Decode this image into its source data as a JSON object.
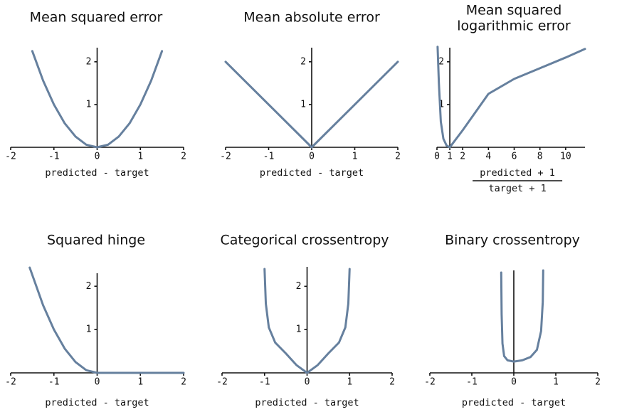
{
  "chart_data": [
    {
      "type": "line",
      "title": [
        "Mean squared error"
      ],
      "x_label": [
        "predicted - target"
      ],
      "color": "#66809e",
      "x": [
        -1.5,
        -1.25,
        -1,
        -0.75,
        -0.5,
        -0.25,
        0,
        0.25,
        0.5,
        0.75,
        1,
        1.25,
        1.5
      ],
      "values": [
        2.25,
        1.56,
        1,
        0.56,
        0.25,
        0.06,
        0,
        0.06,
        0.25,
        0.56,
        1,
        1.56,
        2.25
      ],
      "xlim": [
        -2,
        2
      ],
      "ylim": [
        0,
        2.33
      ],
      "xticks": [
        -2,
        -1,
        0,
        1,
        2
      ],
      "yticks": [
        1,
        2
      ],
      "y_axis_at": 0
    },
    {
      "type": "line",
      "title": [
        "Mean absolute error"
      ],
      "x_label": [
        "predicted - target"
      ],
      "color": "#66809e",
      "x": [
        -2,
        0,
        2
      ],
      "values": [
        2,
        0,
        2
      ],
      "xlim": [
        -2,
        2
      ],
      "ylim": [
        0,
        2.33
      ],
      "xticks": [
        -2,
        -1,
        0,
        1,
        2
      ],
      "yticks": [
        1,
        2
      ],
      "y_axis_at": 0
    },
    {
      "type": "line",
      "title": [
        "Mean squared",
        "logarithmic error"
      ],
      "x_label": [
        "predicted + 1",
        "target + 1"
      ],
      "color": "#66809e",
      "x": [
        0.05,
        0.15,
        0.3,
        0.5,
        0.75,
        1,
        2,
        4,
        6,
        8,
        10,
        11.5
      ],
      "values": [
        2.35,
        1.5,
        0.6,
        0.2,
        0.04,
        0,
        0.4,
        1.25,
        1.6,
        1.85,
        2.1,
        2.3
      ],
      "xlim": [
        0,
        11.5
      ],
      "ylim": [
        0,
        2.33
      ],
      "xticks": [
        0,
        1,
        2,
        4,
        6,
        8,
        10
      ],
      "yticks": [
        1,
        2
      ],
      "y_axis_at": 1
    },
    {
      "type": "line",
      "title": [
        "Squared hinge"
      ],
      "x_label": [
        "predicted - target"
      ],
      "color": "#66809e",
      "x": [
        -1.56,
        -1.25,
        -1,
        -0.75,
        -0.5,
        -0.25,
        0,
        1,
        2
      ],
      "values": [
        2.43,
        1.56,
        1,
        0.56,
        0.25,
        0.06,
        0,
        0,
        0
      ],
      "xlim": [
        -2,
        2
      ],
      "ylim": [
        0,
        2.3
      ],
      "xticks": [
        -2,
        -1,
        0,
        1,
        2
      ],
      "yticks": [
        1,
        2
      ],
      "y_axis_at": 0
    },
    {
      "type": "line",
      "title": [
        "Categorical crossentropy"
      ],
      "x_label": [
        "predicted - target"
      ],
      "color": "#66809e",
      "x": [
        -1,
        -0.97,
        -0.9,
        -0.75,
        -0.5,
        -0.25,
        0,
        0.25,
        0.5,
        0.75,
        0.9,
        0.97,
        1
      ],
      "values": [
        2.4,
        1.6,
        1.05,
        0.7,
        0.45,
        0.18,
        0,
        0.18,
        0.45,
        0.7,
        1.05,
        1.6,
        2.4
      ],
      "xlim": [
        -2,
        2
      ],
      "ylim": [
        0,
        2.45
      ],
      "xticks": [
        -2,
        -1,
        0,
        1,
        2
      ],
      "yticks": [
        1,
        2
      ],
      "y_axis_at": 0
    },
    {
      "type": "line",
      "title": [
        "Binary crossentropy"
      ],
      "x_label": [
        "predicted - target"
      ],
      "color": "#66809e",
      "x": [
        -0.3,
        -0.29,
        -0.27,
        -0.23,
        -0.15,
        0,
        0.2,
        0.4,
        0.55,
        0.65,
        0.69,
        0.7
      ],
      "values": [
        2.4,
        1.4,
        0.7,
        0.4,
        0.3,
        0.27,
        0.3,
        0.38,
        0.55,
        1,
        1.7,
        2.45
      ],
      "xlim": [
        -2,
        2
      ],
      "ylim": [
        0,
        2.45
      ],
      "xticks": [
        -2,
        -1,
        0,
        1,
        2
      ],
      "yticks": [],
      "y_axis_at": 0
    }
  ]
}
